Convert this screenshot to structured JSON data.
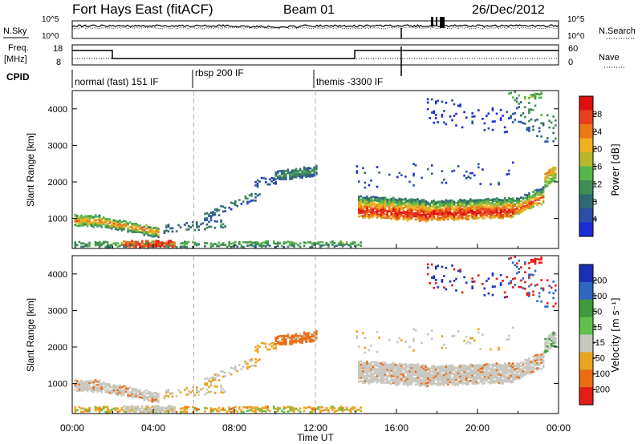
{
  "header": {
    "station": "Fort Hays East (fitACF)",
    "beam": "Beam 01",
    "date": "26/Dec/2012"
  },
  "noise_panel": {
    "left_label": "N.Sky",
    "right_label": "N.Search",
    "left_ticks": [
      "10^5",
      "10^0"
    ],
    "right_ticks": [
      "10^5",
      "10^0"
    ]
  },
  "freq_panel": {
    "left_label_1": "Freq.",
    "left_label_2": "[MHz]",
    "left_ticks": [
      "18",
      "8"
    ],
    "right_ticks": [
      "60",
      "0"
    ],
    "right_label": "Nave"
  },
  "cpid_panel": {
    "label": "CPID",
    "modes": [
      "normal (fast) 151 IF",
      "rbsp 200 IF",
      "themis -3300 IF"
    ]
  },
  "chart_data": [
    {
      "type": "heatmap",
      "name": "power",
      "ylabel": "Slant Range [km]",
      "yticks": [
        "1000",
        "2000",
        "3000",
        "4000"
      ],
      "ylim": [
        180,
        4500
      ],
      "xlim": [
        0,
        24
      ],
      "colorbar_label": "Power [dB]",
      "colorbar_ticks": [
        "4",
        "8",
        "12",
        "16",
        "20",
        "24",
        "28"
      ],
      "colors": [
        "#1c2ad8",
        "#2b4fa8",
        "#2f6a72",
        "#3f8d52",
        "#54b84a",
        "#b6b82c",
        "#f0b020",
        "#ee7718",
        "#e8401a",
        "#e00f0f"
      ]
    },
    {
      "type": "heatmap",
      "name": "velocity",
      "ylabel": "Slant Range [km]",
      "yticks": [
        "1000",
        "2000",
        "3000",
        "4000"
      ],
      "ylim": [
        180,
        4500
      ],
      "xlim": [
        0,
        24
      ],
      "xticks": [
        "00:00",
        "04:00",
        "08:00",
        "12:00",
        "16:00",
        "20:00",
        "00:00"
      ],
      "xlabel": "Time UT",
      "colorbar_label": "Velocity [m s⁻¹]",
      "colorbar_ticks": [
        "200",
        "100",
        "50",
        "15",
        "-15",
        "-50",
        "-100",
        "-200"
      ],
      "colors": [
        "#1a2fb8",
        "#2f66bf",
        "#3e9a3a",
        "#62c04a",
        "#c8c8c0",
        "#eaa420",
        "#ec6c14",
        "#e51d14"
      ]
    }
  ]
}
